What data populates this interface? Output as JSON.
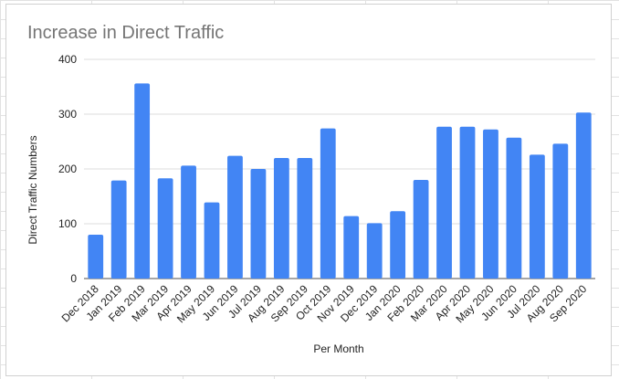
{
  "chart_data": {
    "type": "bar",
    "title": "Increase in Direct Traffic",
    "xlabel": "Per Month",
    "ylabel": "Direct Traffic Numbers",
    "ylim": [
      0,
      400
    ],
    "yticks": [
      0,
      100,
      200,
      300,
      400
    ],
    "grid": true,
    "legend": "none",
    "bar_color": "#4285f4",
    "categories": [
      "Dec 2018",
      "Jan 2019",
      "Feb 2019",
      "Mar 2019",
      "Apr 2019",
      "May 2019",
      "Jun 2019",
      "Jul 2019",
      "Aug 2019",
      "Sep 2019",
      "Oct 2019",
      "Nov 2019",
      "Dec 2019",
      "Jan 2020",
      "Feb 2020",
      "Mar 2020",
      "Apr 2020",
      "May 2020",
      "Jun 2020",
      "Jul 2020",
      "Aug 2020",
      "Sep 2020"
    ],
    "values": [
      80,
      179,
      356,
      183,
      206,
      139,
      224,
      200,
      220,
      220,
      274,
      114,
      101,
      123,
      180,
      277,
      277,
      272,
      257,
      226,
      246,
      303
    ]
  }
}
